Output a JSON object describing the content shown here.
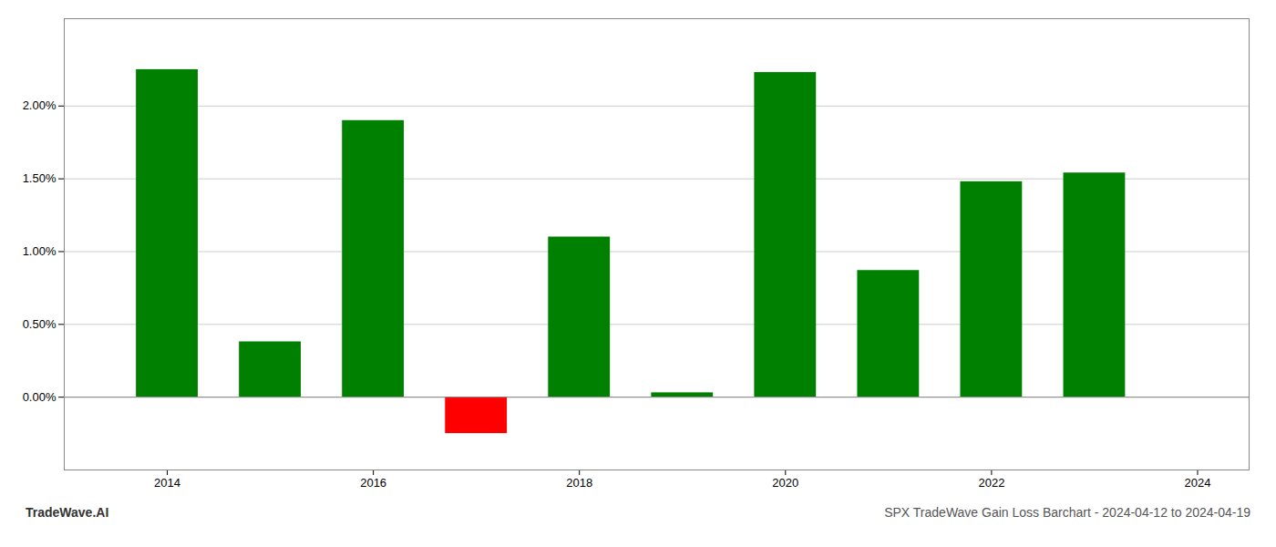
{
  "chart_data": {
    "type": "bar",
    "title": "SPX TradeWave Gain Loss Barchart - 2024-04-12 to 2024-04-19",
    "annotations": [
      "TradeWave.AI"
    ],
    "x": [
      2014,
      2015,
      2016,
      2017,
      2018,
      2019,
      2020,
      2021,
      2022,
      2023
    ],
    "values": [
      0.0225,
      0.0038,
      0.019,
      -0.0025,
      0.011,
      0.0003,
      0.0223,
      0.0087,
      0.0148,
      0.0154
    ],
    "colors": [
      "#008000",
      "#008000",
      "#008000",
      "#ff0000",
      "#008000",
      "#008000",
      "#008000",
      "#008000",
      "#008000",
      "#008000"
    ],
    "xlim": [
      2013.0,
      2024.5
    ],
    "xticks": [
      2014,
      2016,
      2018,
      2020,
      2022,
      2024
    ],
    "ylim": [
      -0.005,
      0.026
    ],
    "yticks": [
      {
        "value": 0.0,
        "label": "0.00%"
      },
      {
        "value": 0.005,
        "label": "0.50%"
      },
      {
        "value": 0.01,
        "label": "1.00%"
      },
      {
        "value": 0.015,
        "label": "1.50%"
      },
      {
        "value": 0.02,
        "label": "2.00%"
      }
    ],
    "grid": true
  }
}
